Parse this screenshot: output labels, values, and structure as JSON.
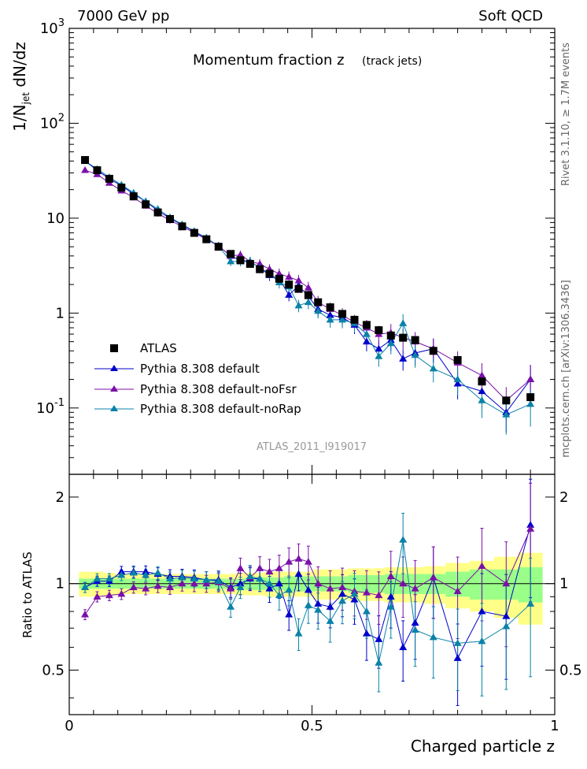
{
  "header": {
    "energy_label": "7000 GeV pp",
    "process_label": "Soft QCD",
    "rivet_label": "Rivet 3.1.10, ≥ 1.7M events",
    "source_label": "mcplots.cern.ch [arXiv:1306.3436]",
    "analysis_label": "ATLAS_2011_I919017"
  },
  "chart_data": [
    {
      "type": "scatter",
      "title": "Momentum fraction z",
      "subtitle": "(track jets)",
      "ylabel": "1/N_jet dN/dz",
      "yscale": "log",
      "ylim": [
        0.02,
        1000
      ],
      "xlim": [
        0,
        1.0
      ],
      "y_tick_labels": [
        "10^-1",
        "1",
        "10",
        "10^2",
        "10^3"
      ],
      "legend_position": "bottom-left",
      "colors": {
        "ATLAS": "#000000",
        "Pythia 8.308 default": "#0000cc",
        "Pythia 8.308 default-noFsr": "#7a10a8",
        "Pythia 8.308 default-noRap": "#0a82a8"
      },
      "x": [
        0.0325,
        0.0575,
        0.0825,
        0.1075,
        0.1325,
        0.1575,
        0.1825,
        0.2075,
        0.2325,
        0.2575,
        0.2825,
        0.3075,
        0.3325,
        0.3525,
        0.3725,
        0.3925,
        0.4125,
        0.4325,
        0.4525,
        0.4725,
        0.4925,
        0.5125,
        0.5375,
        0.5625,
        0.5875,
        0.6125,
        0.6375,
        0.6625,
        0.6875,
        0.7125,
        0.75,
        0.8,
        0.85,
        0.9,
        0.95
      ],
      "series": [
        {
          "name": "ATLAS",
          "marker": "square",
          "values": [
            41,
            32,
            26,
            21,
            17,
            14,
            11.5,
            9.8,
            8.2,
            7.0,
            6.0,
            5.0,
            4.2,
            3.6,
            3.3,
            2.9,
            2.6,
            2.3,
            2.0,
            1.8,
            1.55,
            1.3,
            1.15,
            0.98,
            0.85,
            0.75,
            0.66,
            0.58,
            0.55,
            0.52,
            0.4,
            0.32,
            0.19,
            0.12,
            0.13
          ]
        },
        {
          "name": "Pythia 8.308 default",
          "marker": "triangle",
          "values": [
            40,
            32,
            26,
            22,
            18,
            15,
            12,
            10,
            8.5,
            7.2,
            6.1,
            5.1,
            4.0,
            3.6,
            3.5,
            3.0,
            2.5,
            2.3,
            1.55,
            1.95,
            1.5,
            1.1,
            0.95,
            0.9,
            0.75,
            0.5,
            0.42,
            0.52,
            0.33,
            0.38,
            0.42,
            0.18,
            0.15,
            0.09,
            0.2
          ]
        },
        {
          "name": "Pythia 8.308 default-noFsr",
          "marker": "triangle",
          "values": [
            32,
            29,
            23.5,
            19.5,
            16.5,
            13.5,
            11.2,
            9.5,
            8.2,
            7.0,
            6.0,
            5.1,
            4.0,
            4.1,
            3.5,
            3.3,
            2.9,
            2.6,
            2.4,
            2.2,
            1.85,
            1.3,
            1.1,
            0.95,
            0.8,
            0.7,
            0.6,
            0.62,
            0.55,
            0.5,
            0.42,
            0.3,
            0.22,
            0.12,
            0.2
          ]
        },
        {
          "name": "Pythia 8.308 default-noRap",
          "marker": "triangle",
          "values": [
            40,
            33,
            27,
            22.5,
            18.5,
            15,
            12.5,
            10.2,
            8.6,
            7.3,
            6.2,
            5.1,
            3.5,
            3.5,
            3.5,
            3.0,
            2.6,
            2.1,
            1.9,
            1.2,
            1.3,
            1.05,
            0.85,
            0.85,
            0.78,
            0.6,
            0.35,
            0.48,
            0.78,
            0.36,
            0.26,
            0.2,
            0.12,
            0.085,
            0.11
          ]
        }
      ]
    },
    {
      "type": "scatter",
      "ylabel": "Ratio to ATLAS",
      "xlabel": "Charged particle z",
      "xlim": [
        0,
        1.0
      ],
      "ylim": [
        0.35,
        2.4
      ],
      "yscale": "log",
      "y_tick_labels": [
        "0.5",
        "1",
        "2"
      ],
      "x_tick_labels": [
        "0",
        "0.5",
        "1"
      ],
      "band_colors": {
        "stat": "#99ff88",
        "syst": "#ffff88"
      },
      "band_stat": [
        0.04,
        0.04,
        0.04,
        0.04,
        0.04,
        0.04,
        0.04,
        0.04,
        0.04,
        0.04,
        0.04,
        0.04,
        0.04,
        0.04,
        0.05,
        0.05,
        0.05,
        0.05,
        0.06,
        0.06,
        0.06,
        0.06,
        0.06,
        0.06,
        0.07,
        0.07,
        0.07,
        0.08,
        0.08,
        0.08,
        0.08,
        0.1,
        0.12,
        0.12,
        0.14
      ],
      "band_syst": [
        0.1,
        0.1,
        0.09,
        0.08,
        0.08,
        0.08,
        0.08,
        0.08,
        0.08,
        0.08,
        0.08,
        0.08,
        0.08,
        0.09,
        0.09,
        0.09,
        0.1,
        0.1,
        0.1,
        0.1,
        0.1,
        0.12,
        0.12,
        0.12,
        0.13,
        0.13,
        0.13,
        0.14,
        0.14,
        0.14,
        0.15,
        0.18,
        0.2,
        0.24,
        0.28
      ],
      "series": [
        {
          "name": "Pythia 8.308 default",
          "values": [
            0.97,
            1.02,
            1.02,
            1.1,
            1.1,
            1.1,
            1.08,
            1.06,
            1.06,
            1.05,
            1.03,
            1.03,
            0.97,
            1.0,
            1.04,
            1.04,
            0.96,
            1.0,
            0.78,
            1.08,
            0.95,
            0.85,
            0.83,
            0.92,
            0.88,
            0.67,
            0.64,
            0.9,
            0.6,
            0.73,
            1.05,
            0.55,
            0.8,
            0.77,
            1.6
          ]
        },
        {
          "name": "Pythia 8.308 default-noFsr",
          "values": [
            0.78,
            0.9,
            0.91,
            0.92,
            0.97,
            0.96,
            0.98,
            0.97,
            1.0,
            1.0,
            1.0,
            1.01,
            0.96,
            1.13,
            1.05,
            1.13,
            1.1,
            1.13,
            1.19,
            1.22,
            1.19,
            1.0,
            0.96,
            0.97,
            0.94,
            0.93,
            0.91,
            1.06,
            1.0,
            0.96,
            1.05,
            0.94,
            1.15,
            1.0,
            1.55
          ]
        },
        {
          "name": "Pythia 8.308 default-noRap",
          "values": [
            0.97,
            1.04,
            1.04,
            1.07,
            1.09,
            1.07,
            1.09,
            1.04,
            1.05,
            1.04,
            1.03,
            1.02,
            0.83,
            0.97,
            1.06,
            1.04,
            1.0,
            0.91,
            0.95,
            0.67,
            0.84,
            0.81,
            0.74,
            0.87,
            0.92,
            0.8,
            0.53,
            0.83,
            1.42,
            0.69,
            0.65,
            0.62,
            0.63,
            0.71,
            0.85
          ]
        }
      ]
    }
  ],
  "legend": {
    "items": [
      {
        "label": "ATLAS"
      },
      {
        "label": "Pythia 8.308 default"
      },
      {
        "label": "Pythia 8.308 default-noFsr"
      },
      {
        "label": "Pythia 8.308 default-noRap"
      }
    ]
  }
}
